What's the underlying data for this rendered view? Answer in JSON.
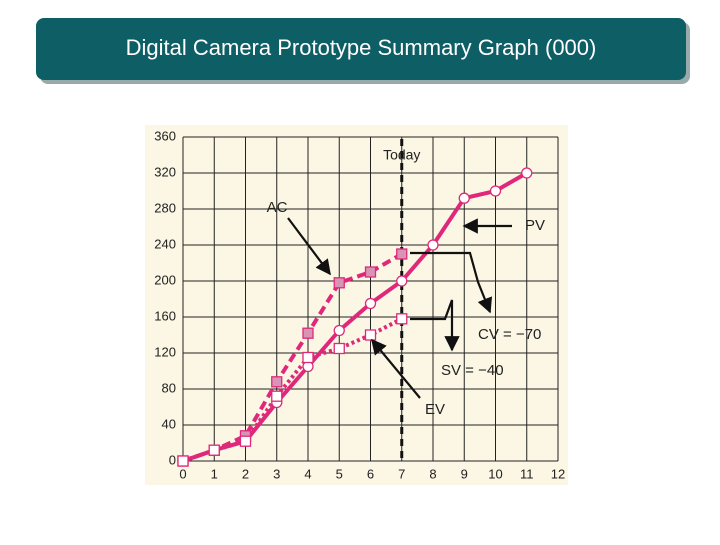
{
  "chart_data": {
    "type": "line",
    "title": "Digital Camera Prototype Summary Graph (000)",
    "x": [
      0,
      1,
      2,
      3,
      4,
      5,
      6,
      7,
      8,
      9,
      10,
      11
    ],
    "series": [
      {
        "name": "PV",
        "color": "#e0287a",
        "style": "solid",
        "marker": "circle",
        "values": [
          0,
          12,
          22,
          65,
          105,
          145,
          175,
          200,
          240,
          292,
          300,
          320
        ]
      },
      {
        "name": "AC",
        "color": "#e0287a",
        "style": "dashed",
        "marker": "filled-square",
        "values": [
          0,
          12,
          28,
          88,
          142,
          198,
          210,
          230,
          null,
          null,
          null,
          null
        ]
      },
      {
        "name": "EV",
        "color": "#e0287a",
        "style": "dotted",
        "marker": "open-square",
        "values": [
          0,
          12,
          22,
          72,
          115,
          125,
          140,
          158,
          null,
          null,
          null,
          null
        ]
      }
    ],
    "reference_line": {
      "x": 7,
      "label": "Today"
    },
    "annotations": [
      "CV = −70",
      "SV = −40"
    ],
    "xlim": [
      0,
      12
    ],
    "xticks": [
      0,
      1,
      2,
      3,
      4,
      5,
      6,
      7,
      8,
      9,
      10,
      11,
      12
    ],
    "ylim": [
      0,
      360
    ],
    "yticks": [
      0,
      40,
      80,
      120,
      160,
      200,
      240,
      280,
      320,
      360
    ],
    "grid": true
  }
}
